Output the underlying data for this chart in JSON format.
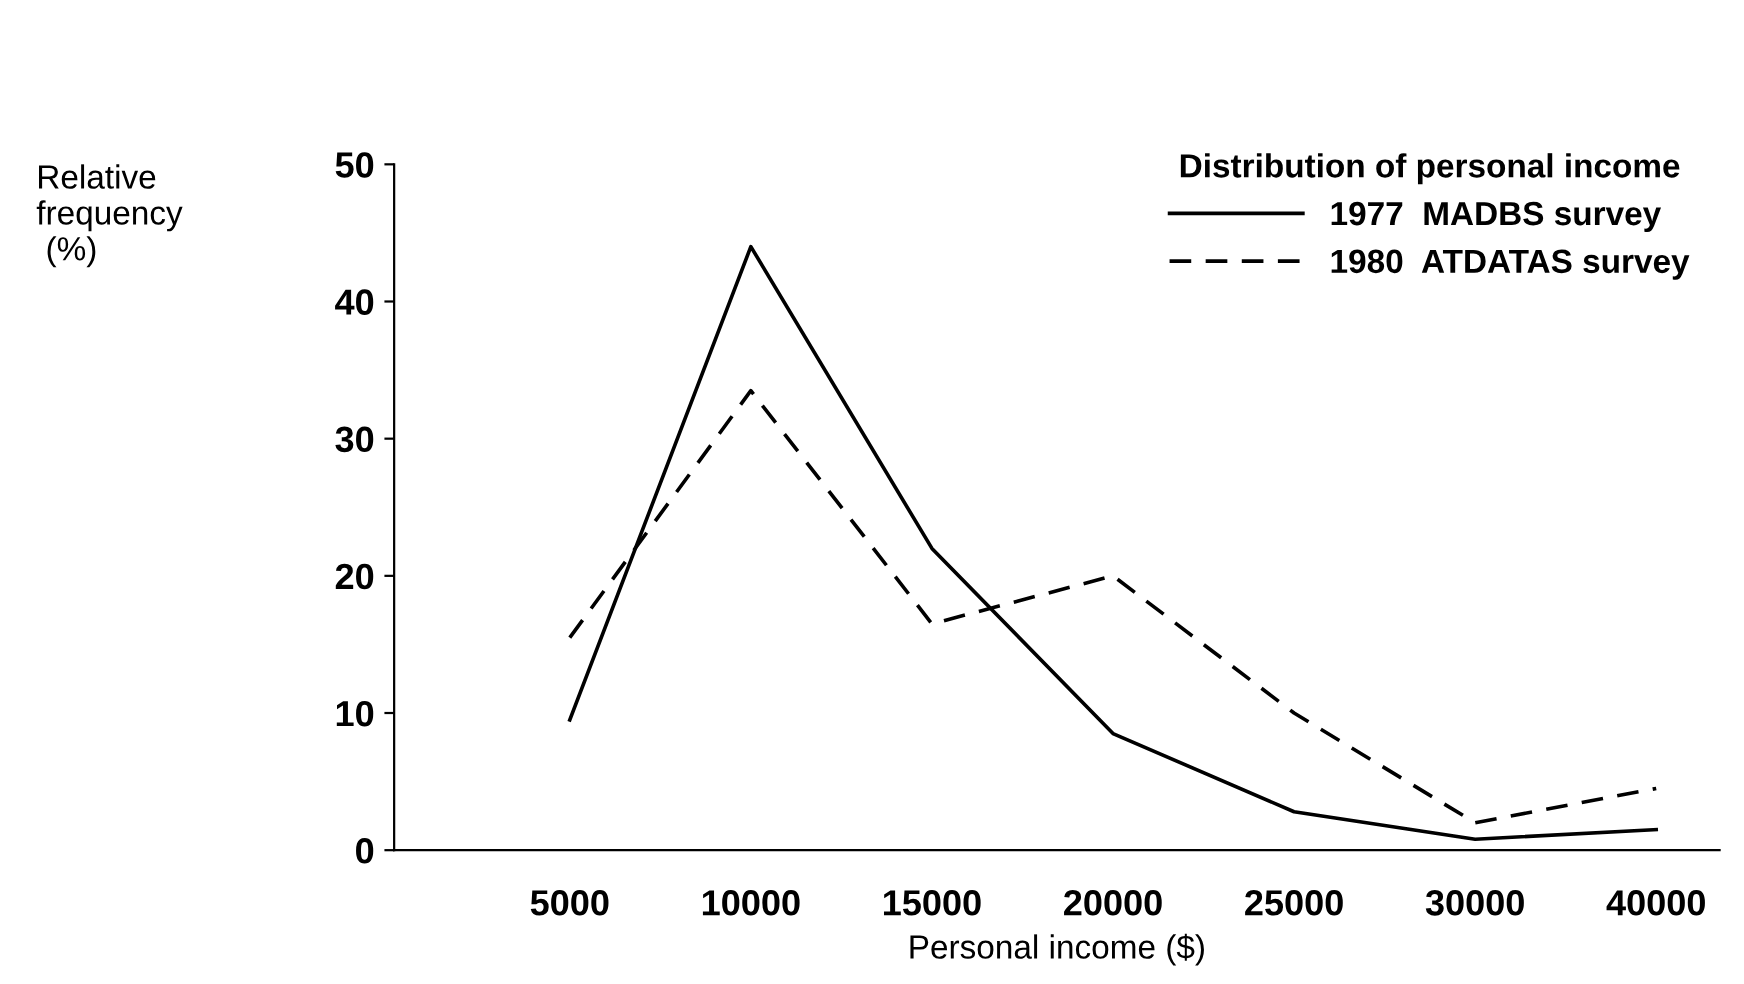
{
  "chart_data": {
    "type": "line",
    "xlabel": "Personal income ($)",
    "ylabel": "Relative\nfrequency\n (%)",
    "legend_title": "Distribution of personal income",
    "categories": [
      "5000",
      "10000",
      "15000",
      "20000",
      "25000",
      "30000",
      "40000"
    ],
    "series": [
      {
        "name": "1977  MADBS survey",
        "color": "#000000",
        "line_style": "solid",
        "values": [
          9.5,
          44,
          22,
          8.5,
          2.8,
          0.8,
          1.5
        ]
      },
      {
        "name": "1980  ATDATAS survey",
        "color": "#000000",
        "line_style": "dashed",
        "values": [
          15.5,
          33.5,
          16.5,
          20,
          10,
          2,
          4.5
        ]
      }
    ],
    "ylim": [
      0,
      50
    ],
    "yticks": [
      0,
      10,
      20,
      30,
      40,
      50
    ],
    "grid": false,
    "legend": "top right",
    "marker": "none"
  }
}
